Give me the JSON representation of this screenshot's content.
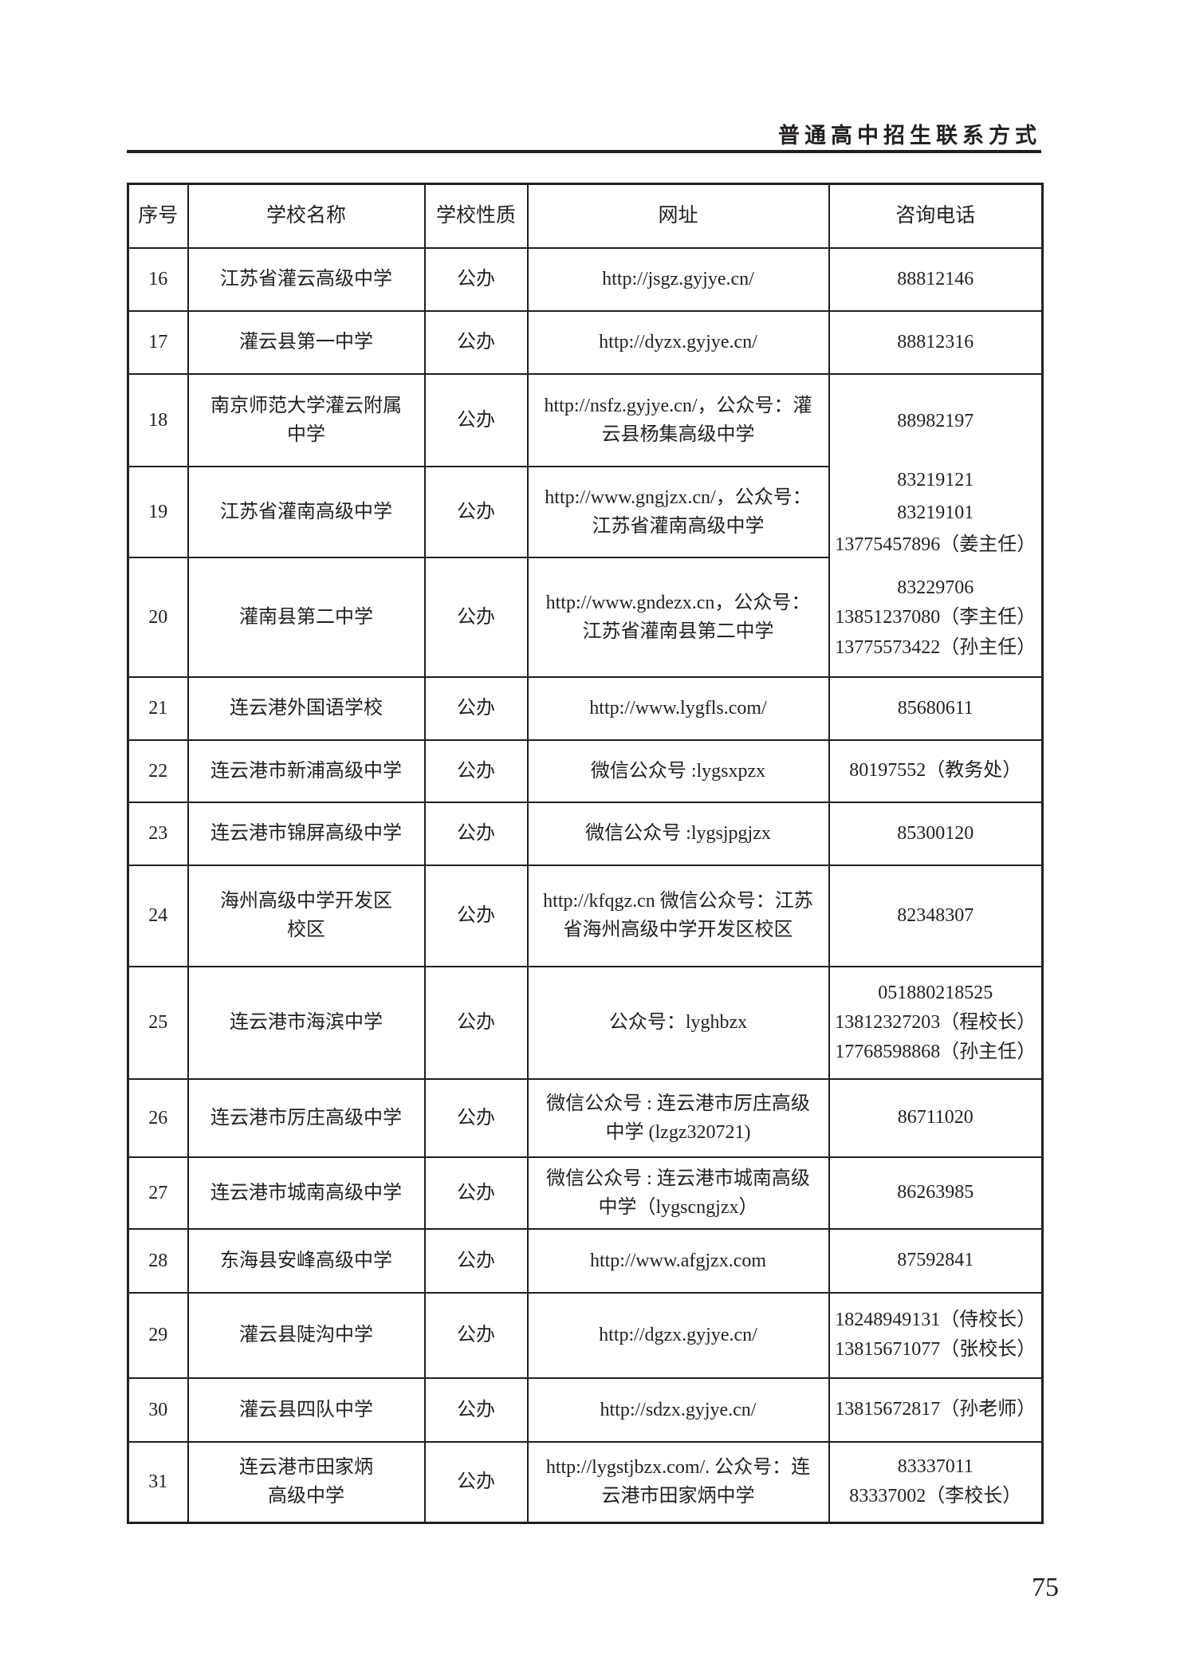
{
  "running_head": "普通高中招生联系方式",
  "page_number": "75",
  "table": {
    "headers": [
      "序号",
      "学校名称",
      "学校性质",
      "网址",
      "咨询电话"
    ],
    "rows": [
      {
        "no": "16",
        "name": "江苏省灌云高级中学",
        "type": "公办",
        "url": "http://jsgz.gyjye.cn/",
        "phone": [
          "88812146"
        ]
      },
      {
        "no": "17",
        "name": "灌云县第一中学",
        "type": "公办",
        "url": "http://dyzx.gyjye.cn/",
        "phone": [
          "88812316"
        ]
      },
      {
        "no": "18",
        "name": "南京师范大学灌云附属\n中学",
        "type": "公办",
        "url": "http://nsfz.gyjye.cn/，公众号：灌\n云县杨集高级中学",
        "phone": [
          "88982197"
        ]
      },
      {
        "no": "19",
        "name": "江苏省灌南高级中学",
        "type": "公办",
        "url": "http://www.gngjzx.cn/，公众号：\n江苏省灌南高级中学",
        "phone": [
          "83219121",
          "83219101",
          "13775457896（姜主任）"
        ]
      },
      {
        "no": "20",
        "name": "灌南县第二中学",
        "type": "公办",
        "url": "http://www.gndezx.cn，公众号：\n江苏省灌南县第二中学",
        "phone": [
          "83229706",
          "13851237080（李主任）",
          "13775573422（孙主任）"
        ]
      },
      {
        "no": "21",
        "name": "连云港外国语学校",
        "type": "公办",
        "url": "http://www.lygfls.com/",
        "phone": [
          "85680611"
        ]
      },
      {
        "no": "22",
        "name": "连云港市新浦高级中学",
        "type": "公办",
        "url": "微信公众号 :lygsxpzx",
        "phone": [
          "80197552（教务处）"
        ]
      },
      {
        "no": "23",
        "name": "连云港市锦屏高级中学",
        "type": "公办",
        "url": "微信公众号 :lygsjpgjzx",
        "phone": [
          "85300120"
        ]
      },
      {
        "no": "24",
        "name": "海州高级中学开发区\n校区",
        "type": "公办",
        "url": "http://kfqgz.cn 微信公众号：江苏\n省海州高级中学开发区校区",
        "phone": [
          "82348307"
        ]
      },
      {
        "no": "25",
        "name": "连云港市海滨中学",
        "type": "公办",
        "url": "公众号：lyghbzx",
        "phone": [
          "051880218525",
          "13812327203（程校长）",
          "17768598868（孙主任）"
        ]
      },
      {
        "no": "26",
        "name": "连云港市厉庄高级中学",
        "type": "公办",
        "url": "微信公众号 : 连云港市厉庄高级\n中学 (lzgz320721)",
        "phone": [
          "86711020"
        ]
      },
      {
        "no": "27",
        "name": "连云港市城南高级中学",
        "type": "公办",
        "url": "微信公众号 : 连云港市城南高级\n中学（lygscngjzx）",
        "phone": [
          "86263985"
        ]
      },
      {
        "no": "28",
        "name": "东海县安峰高级中学",
        "type": "公办",
        "url": "http://www.afgjzx.com",
        "phone": [
          "87592841"
        ]
      },
      {
        "no": "29",
        "name": "灌云县陡沟中学",
        "type": "公办",
        "url": "http://dgzx.gyjye.cn/",
        "phone": [
          "18248949131（侍校长）",
          "13815671077（张校长）"
        ]
      },
      {
        "no": "30",
        "name": "灌云县四队中学",
        "type": "公办",
        "url": "http://sdzx.gyjye.cn/",
        "phone": [
          "13815672817（孙老师）"
        ]
      },
      {
        "no": "31",
        "name": "连云港市田家炳\n高级中学",
        "type": "公办",
        "url": "http://lygstjbzx.com/. 公众号：连\n云港市田家炳中学",
        "phone": [
          "83337011",
          "83337002（李校长）"
        ]
      }
    ]
  }
}
